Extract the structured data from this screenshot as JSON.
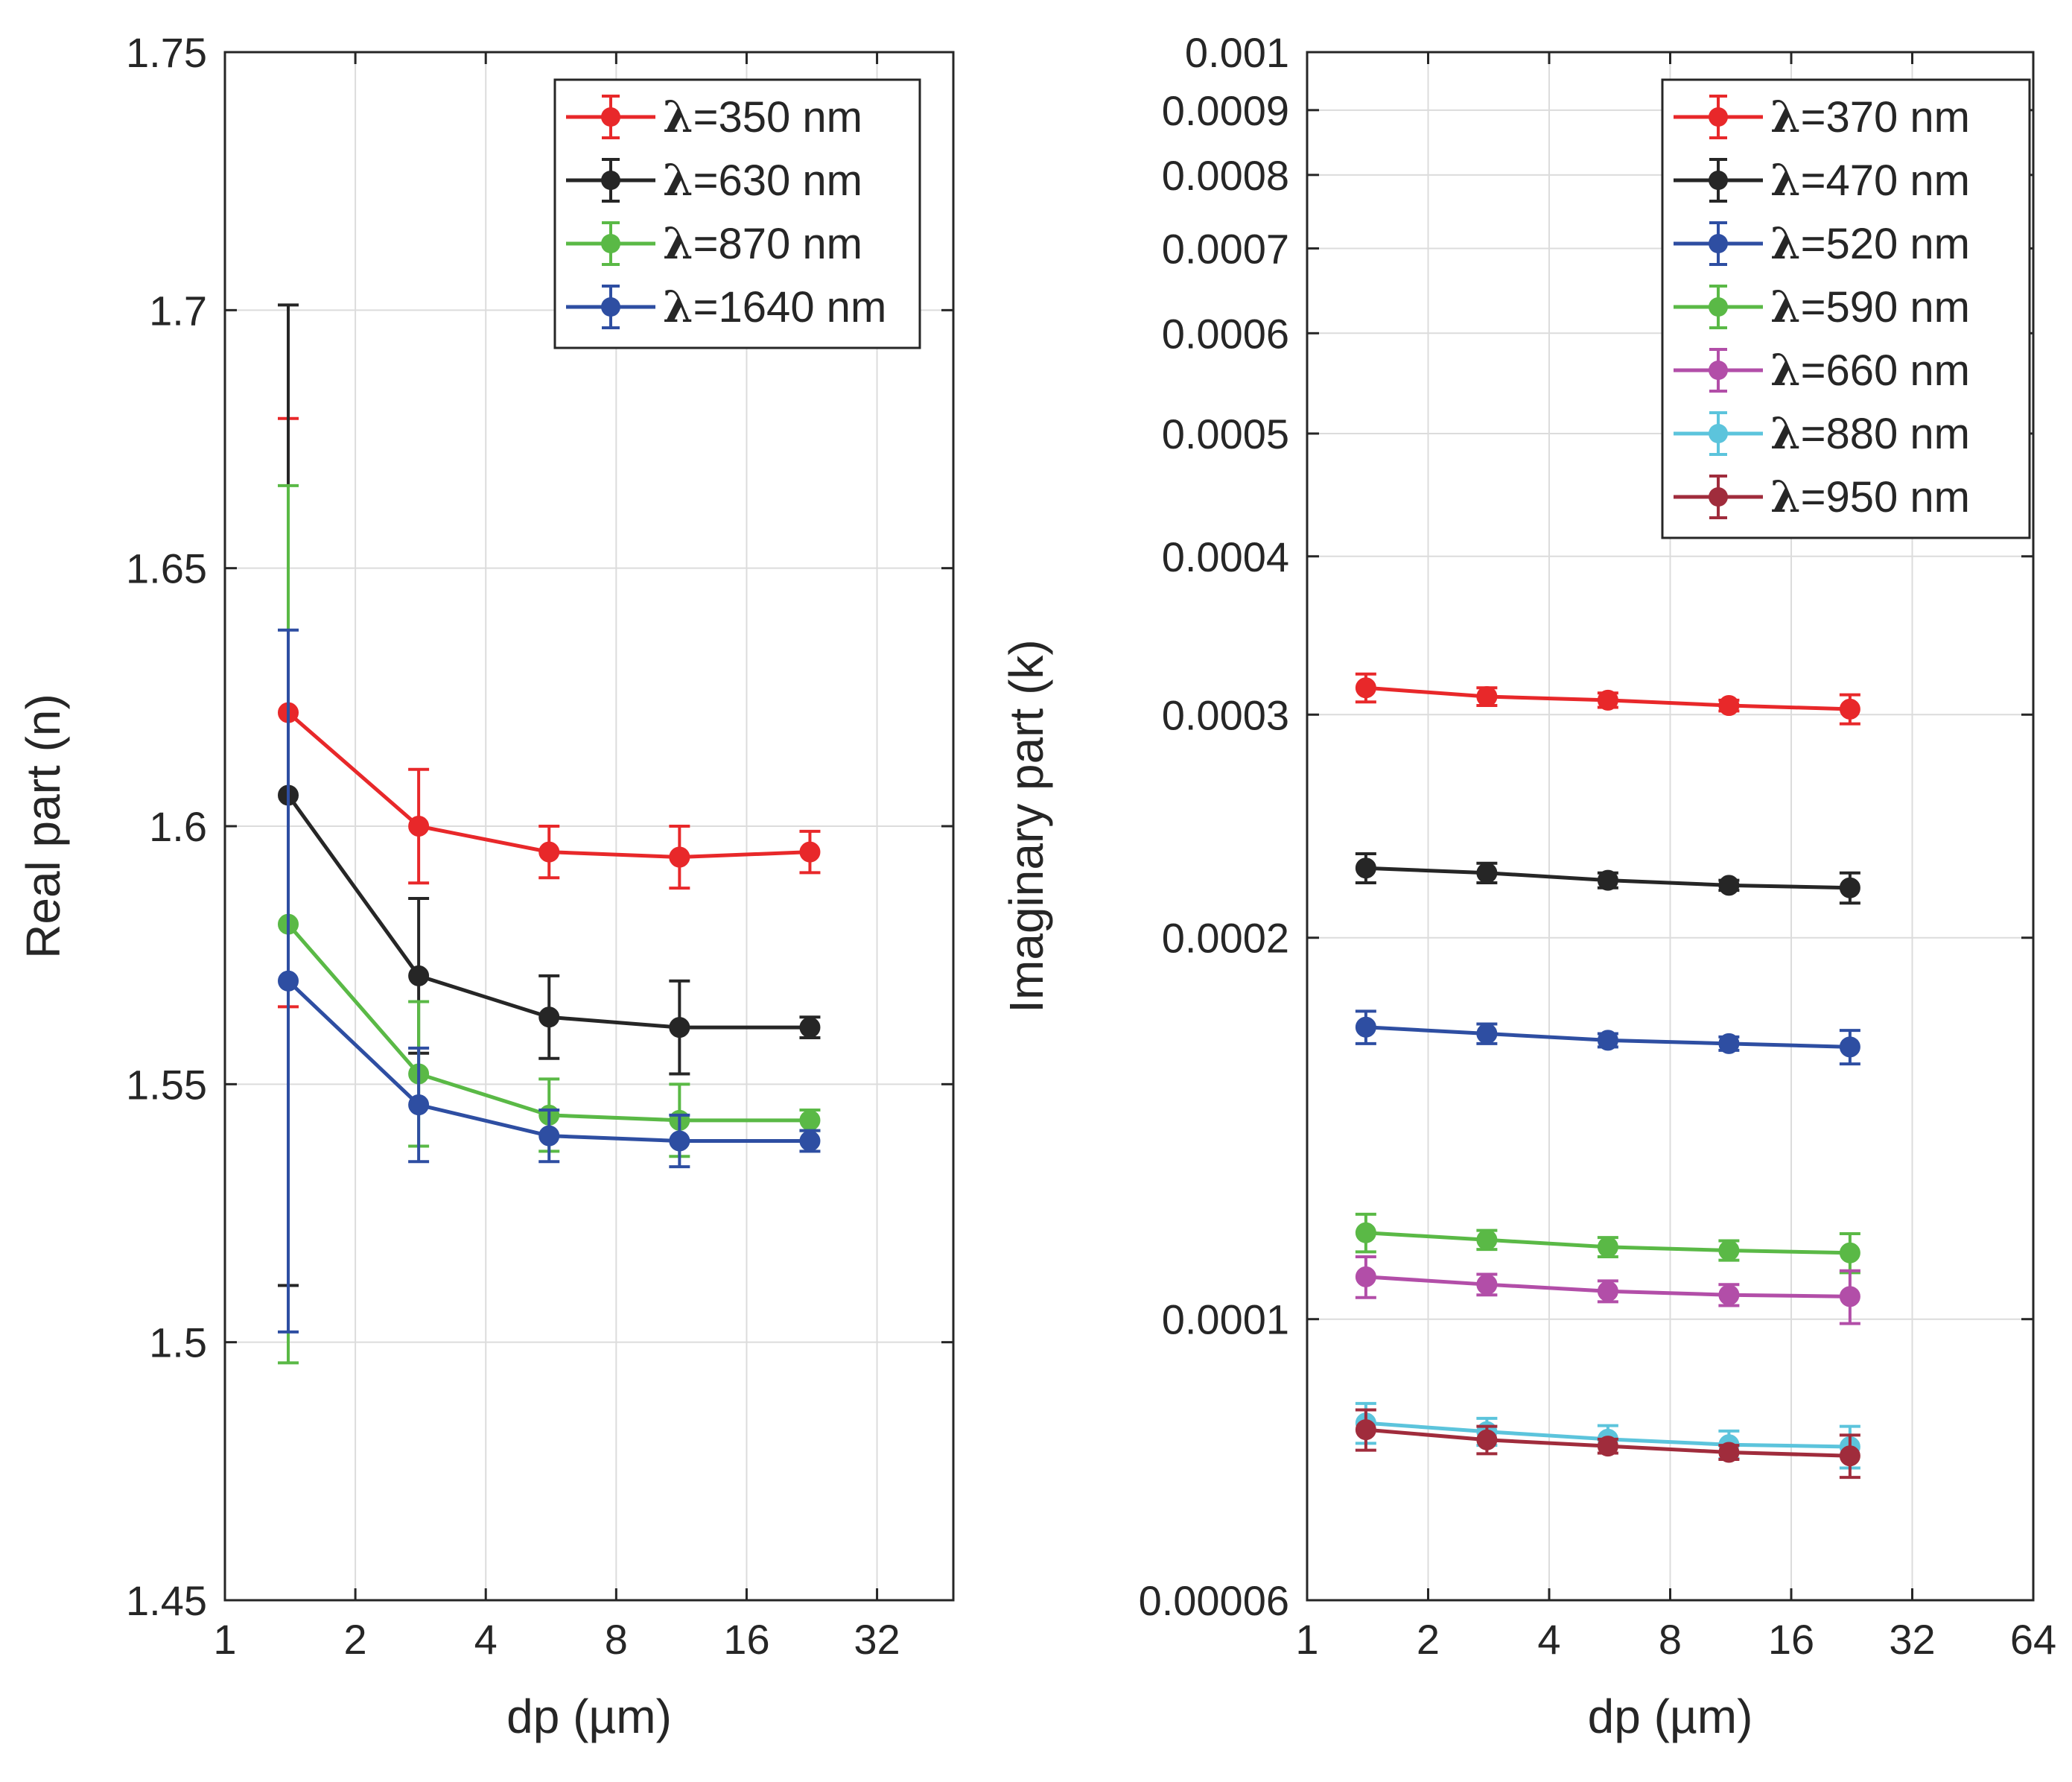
{
  "chart_data": [
    {
      "type": "line",
      "xscale": "log2",
      "x_ticks": [
        1,
        2,
        4,
        8,
        16,
        32
      ],
      "x_tick_labels": [
        "1",
        "2",
        "4",
        "8",
        "16",
        "32"
      ],
      "xlim": [
        1,
        48
      ],
      "xlabel": "dp (µm)",
      "ylabel": "Real part (n)",
      "yscale": "linear",
      "ylim": [
        1.45,
        1.75
      ],
      "y_ticks": [
        1.45,
        1.5,
        1.55,
        1.6,
        1.65,
        1.7,
        1.75
      ],
      "y_tick_labels": [
        "1.45",
        "1.5",
        "1.55",
        "1.6",
        "1.65",
        "1.7",
        "1.75"
      ],
      "grid": true,
      "legend_position": "top-right",
      "x": [
        1.4,
        2.8,
        5.6,
        11.2,
        22.4
      ],
      "series": [
        {
          "name": "=350 nm",
          "color": "#e8282a",
          "y": [
            1.622,
            1.6,
            1.595,
            1.594,
            1.595
          ],
          "err": [
            0.057,
            0.011,
            0.005,
            0.006,
            0.004
          ]
        },
        {
          "name": "=630 nm",
          "color": "#262626",
          "y": [
            1.606,
            1.571,
            1.563,
            1.561,
            1.561
          ],
          "err": [
            0.095,
            0.015,
            0.008,
            0.009,
            0.002
          ]
        },
        {
          "name": "=870 nm",
          "color": "#5ab946",
          "y": [
            1.581,
            1.552,
            1.544,
            1.543,
            1.543
          ],
          "err": [
            0.085,
            0.014,
            0.007,
            0.007,
            0.002
          ]
        },
        {
          "name": "=1640 nm",
          "color": "#2e4ea2",
          "y": [
            1.57,
            1.546,
            1.54,
            1.539,
            1.539
          ],
          "err": [
            0.068,
            0.011,
            0.005,
            0.005,
            0.002
          ]
        }
      ]
    },
    {
      "type": "line",
      "xscale": "log2",
      "x_ticks": [
        1,
        2,
        4,
        8,
        16,
        32,
        64
      ],
      "x_tick_labels": [
        "1",
        "2",
        "4",
        "8",
        "16",
        "32",
        "64"
      ],
      "xlim": [
        1,
        64
      ],
      "xlabel": "dp (µm)",
      "ylabel": "Imaginary part (k)",
      "yscale": "log",
      "ylim": [
        6e-05,
        0.001
      ],
      "y_ticks": [
        6e-05,
        0.0001,
        0.0002,
        0.0003,
        0.0004,
        0.0005,
        0.0006,
        0.0007,
        0.0008,
        0.0009,
        0.001
      ],
      "y_tick_labels": [
        "0.00006",
        "0.0001",
        "0.0002",
        "0.0003",
        "0.0004",
        "0.0005",
        "0.0006",
        "0.0007",
        "0.0008",
        "0.0009",
        "0.001"
      ],
      "grid": true,
      "legend_position": "top-right",
      "x": [
        1.4,
        2.8,
        5.6,
        11.2,
        22.4
      ],
      "series": [
        {
          "name": "=370 nm",
          "color": "#e8282a",
          "y": [
            0.000315,
            0.00031,
            0.000308,
            0.000305,
            0.000303
          ],
          "err": [
            8e-06,
            5e-06,
            4e-06,
            3e-06,
            8e-06
          ]
        },
        {
          "name": "=470 nm",
          "color": "#262626",
          "y": [
            0.000227,
            0.000225,
            0.000222,
            0.00022,
            0.000219
          ],
          "err": [
            6e-06,
            4e-06,
            3e-06,
            2e-06,
            6e-06
          ]
        },
        {
          "name": "=520 nm",
          "color": "#2e4ea2",
          "y": [
            0.00017,
            0.000168,
            0.000166,
            0.000165,
            0.000164
          ],
          "err": [
            5e-06,
            3e-06,
            2e-06,
            2e-06,
            5e-06
          ]
        },
        {
          "name": "=590 nm",
          "color": "#5ab946",
          "y": [
            0.000117,
            0.0001155,
            0.000114,
            0.0001133,
            0.0001128
          ],
          "err": [
            4e-06,
            2e-06,
            2e-06,
            2e-06,
            4e-06
          ]
        },
        {
          "name": "=660 nm",
          "color": "#b24ea8",
          "y": [
            0.000108,
            0.0001065,
            0.0001052,
            0.0001045,
            0.0001042
          ],
          "err": [
            4e-06,
            2e-06,
            2e-06,
            2e-06,
            5e-06
          ]
        },
        {
          "name": "=880 nm",
          "color": "#5cc4dc",
          "y": [
            8.28e-05,
            8.15e-05,
            8.04e-05,
            7.96e-05,
            7.93e-05
          ],
          "err": [
            3e-06,
            2e-06,
            2e-06,
            2e-06,
            3e-06
          ]
        },
        {
          "name": "=950 nm",
          "color": "#a02c3c",
          "y": [
            8.18e-05,
            8.03e-05,
            7.94e-05,
            7.85e-05,
            7.8e-05
          ],
          "err": [
            3e-06,
            2e-06,
            1e-06,
            1e-06,
            3e-06
          ]
        }
      ]
    }
  ],
  "legend_symbol": "λ"
}
